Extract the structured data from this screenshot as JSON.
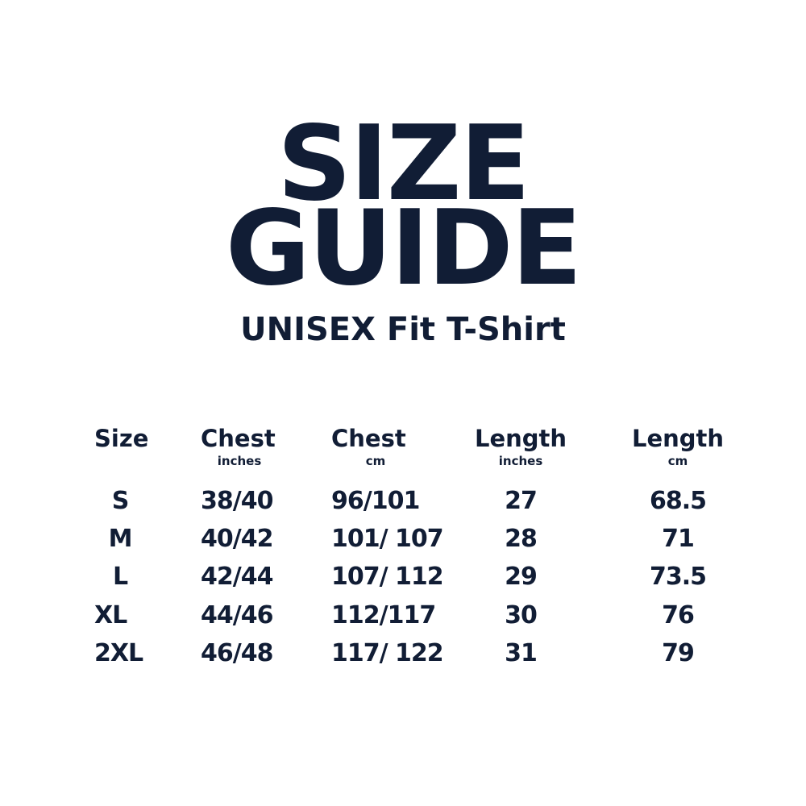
{
  "title": {
    "line1": "SIZE",
    "line2": "GUIDE"
  },
  "subtitle": "UNISEX Fit T-Shirt",
  "colors": {
    "text": "#111d35",
    "background": "#ffffff"
  },
  "table": {
    "columns": [
      {
        "label": "Size",
        "unit": ""
      },
      {
        "label": "Chest",
        "unit": "inches"
      },
      {
        "label": "Chest",
        "unit": "cm"
      },
      {
        "label": "Length",
        "unit": "inches"
      },
      {
        "label": "Length",
        "unit": "cm"
      }
    ],
    "rows": [
      [
        "S",
        "38/40",
        "96/101",
        "27",
        "68.5"
      ],
      [
        "M",
        "40/42",
        "101/ 107",
        "28",
        "71"
      ],
      [
        "L",
        "42/44",
        "107/ 112",
        "29",
        "73.5"
      ],
      [
        "XL",
        "44/46",
        "112/117",
        "30",
        "76"
      ],
      [
        "2XL",
        "46/48",
        "117/ 122",
        "31",
        "79"
      ]
    ]
  }
}
